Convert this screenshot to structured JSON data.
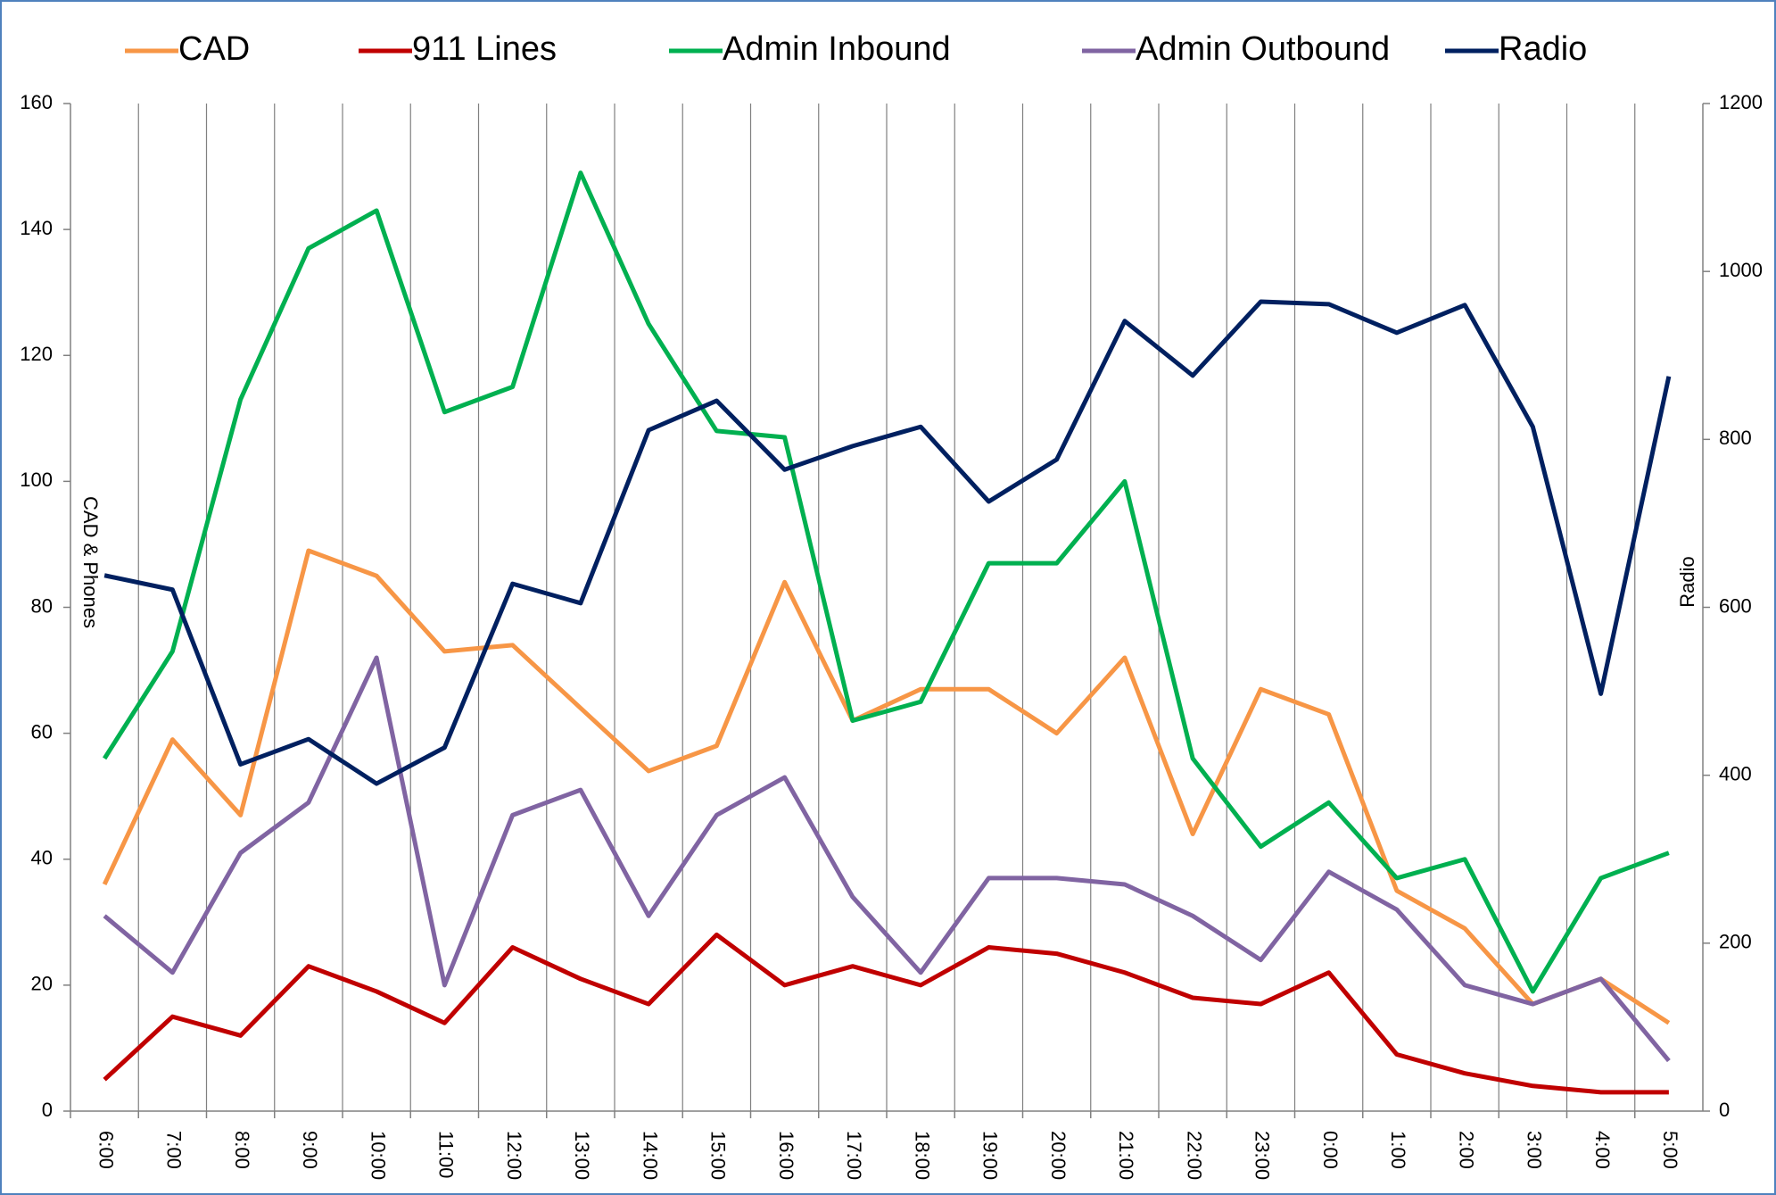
{
  "chart_data": {
    "type": "line",
    "categories": [
      "6:00",
      "7:00",
      "8:00",
      "9:00",
      "10:00",
      "11:00",
      "12:00",
      "13:00",
      "14:00",
      "15:00",
      "16:00",
      "17:00",
      "18:00",
      "19:00",
      "20:00",
      "21:00",
      "22:00",
      "23:00",
      "0:00",
      "1:00",
      "2:00",
      "3:00",
      "4:00",
      "5:00"
    ],
    "y_label": "CAD & Phones",
    "y2_label": "Radio",
    "ylim": [
      0,
      160
    ],
    "yticks": [
      0,
      20,
      40,
      60,
      80,
      100,
      120,
      140,
      160
    ],
    "y2lim": [
      0,
      1200
    ],
    "y2ticks": [
      0,
      200,
      400,
      600,
      800,
      1000,
      1200
    ],
    "grid": true,
    "series": [
      {
        "name": "CAD",
        "color": "#f79646",
        "values": [
          36,
          59,
          47,
          89,
          85,
          73,
          74,
          64,
          54,
          58,
          84,
          62,
          67,
          67,
          60,
          72,
          44,
          67,
          63,
          35,
          29,
          17,
          21,
          14
        ]
      },
      {
        "name": "911 Lines",
        "color": "#c00000",
        "values": [
          5,
          15,
          12,
          23,
          19,
          14,
          26,
          21,
          17,
          28,
          20,
          23,
          20,
          26,
          25,
          22,
          18,
          17,
          22,
          9,
          6,
          4,
          3,
          3
        ]
      },
      {
        "name": "Admin Inbound",
        "color": "#00b050",
        "values": [
          56,
          73,
          113,
          137,
          143,
          111,
          115,
          149,
          125,
          108,
          107,
          62,
          65,
          87,
          87,
          100,
          56,
          42,
          49,
          37,
          40,
          19,
          37,
          41
        ]
      },
      {
        "name": "Admin Outbound",
        "color": "#8064a2",
        "values": [
          31,
          22,
          41,
          49,
          72,
          20,
          47,
          51,
          31,
          47,
          53,
          34,
          22,
          37,
          37,
          36,
          31,
          24,
          38,
          32,
          20,
          17,
          21,
          8
        ]
      },
      {
        "name": "Radio",
        "color": "#002060",
        "axis": "y2",
        "values": [
          638,
          621,
          413,
          443,
          390,
          433,
          628,
          605,
          811,
          846,
          764,
          792,
          815,
          726,
          776,
          941,
          876,
          964,
          961,
          927,
          960,
          815,
          497,
          875
        ]
      }
    ]
  }
}
